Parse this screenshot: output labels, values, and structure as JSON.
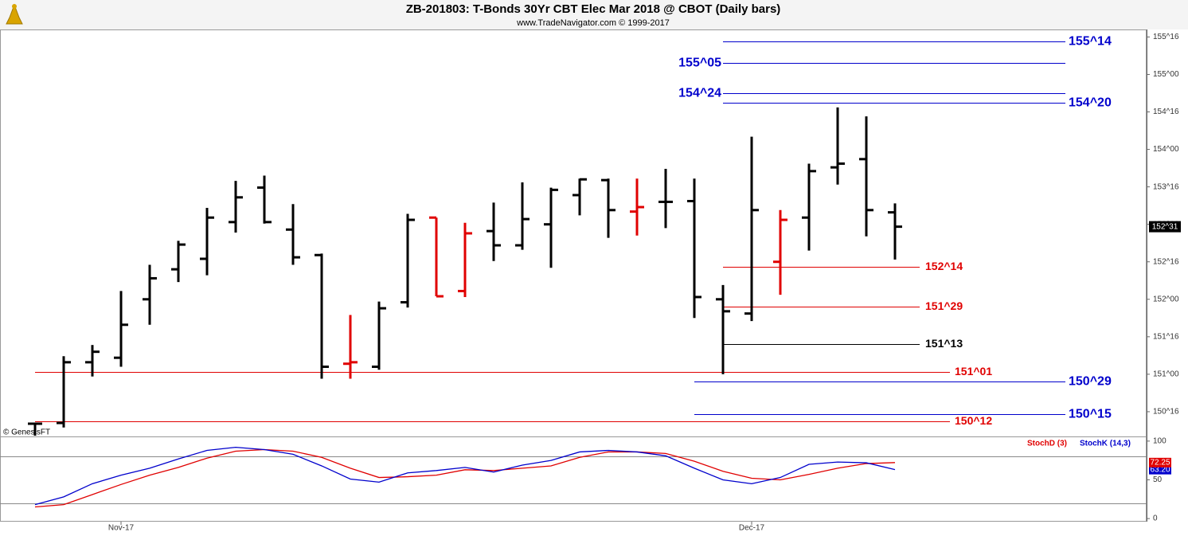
{
  "chart_data": [
    {
      "type": "ohlc",
      "title": "ZB-201803:  T-Bonds 30Yr CBT Elec Mar 2018 @ CBOT  (Daily bars)",
      "subtitle": "www.TradeNavigator.com © 1999-2017",
      "watermark": "© GenesisFT",
      "categories": [
        null,
        null,
        null,
        "Nov-17",
        null,
        null,
        null,
        null,
        null,
        null,
        null,
        null,
        null,
        null,
        null,
        null,
        null,
        null,
        null,
        null,
        null,
        null,
        null,
        null,
        null,
        "Dec-17",
        null,
        null,
        null,
        null,
        null
      ],
      "open": [
        150.34,
        150.35,
        151.16,
        151.22,
        152.0,
        152.4,
        152.54,
        153.03,
        153.49,
        152.93,
        152.59,
        151.14,
        151.1,
        151.96,
        153.09,
        152.11,
        152.91,
        152.72,
        153.0,
        153.39,
        153.59,
        153.17,
        153.3,
        153.31,
        152.0,
        151.81,
        152.5,
        153.09,
        153.76,
        153.87,
        153.16
      ],
      "high": [
        150.34,
        151.24,
        151.39,
        152.11,
        152.46,
        152.78,
        153.22,
        153.58,
        153.65,
        153.27,
        152.61,
        151.79,
        151.97,
        153.14,
        153.09,
        153.02,
        153.29,
        153.56,
        153.49,
        153.61,
        153.61,
        153.61,
        153.74,
        153.61,
        152.19,
        154.17,
        153.19,
        153.81,
        154.56,
        154.44,
        153.28
      ],
      "low": [
        150.18,
        150.29,
        150.97,
        151.1,
        151.66,
        152.23,
        152.32,
        152.89,
        153.01,
        152.46,
        150.94,
        150.94,
        151.06,
        151.89,
        152.04,
        152.03,
        152.51,
        152.66,
        152.42,
        153.12,
        152.82,
        152.85,
        152.95,
        151.75,
        151.0,
        151.71,
        152.06,
        152.65,
        153.53,
        152.84,
        152.53
      ],
      "close": [
        150.34,
        151.16,
        151.3,
        151.66,
        152.28,
        152.73,
        153.09,
        153.36,
        153.03,
        152.56,
        151.1,
        151.16,
        151.88,
        153.06,
        152.04,
        152.88,
        152.72,
        153.07,
        153.46,
        153.6,
        153.19,
        153.23,
        153.3,
        152.03,
        151.84,
        153.19,
        153.06,
        153.71,
        153.81,
        153.19,
        152.96875
      ],
      "colors": [
        "#000000",
        "#000000",
        "#000000",
        "#000000",
        "#000000",
        "#000000",
        "#000000",
        "#000000",
        "#000000",
        "#000000",
        "#000000",
        "#e00000",
        "#000000",
        "#000000",
        "#e00000",
        "#e00000",
        "#000000",
        "#000000",
        "#000000",
        "#000000",
        "#000000",
        "#e00000",
        "#000000",
        "#000000",
        "#000000",
        "#000000",
        "#e00000",
        "#000000",
        "#000000",
        "#000000",
        "#000000"
      ],
      "ylim": [
        150.17,
        155.6
      ],
      "yticks": [
        {
          "value": 150.5,
          "label": "150^16"
        },
        {
          "value": 151,
          "label": "151^00"
        },
        {
          "value": 151.5,
          "label": "151^16"
        },
        {
          "value": 152,
          "label": "152^00"
        },
        {
          "value": 152.5,
          "label": "152^16"
        },
        {
          "value": 153,
          "label": "153^00"
        },
        {
          "value": 153.5,
          "label": "153^16"
        },
        {
          "value": 154,
          "label": "154^00"
        },
        {
          "value": 154.5,
          "label": "154^16"
        },
        {
          "value": 155,
          "label": "155^00"
        },
        {
          "value": 155.5,
          "label": "155^16"
        }
      ],
      "levels": [
        {
          "value": 155.4375,
          "label": "155^14",
          "color": "#0000cc"
        },
        {
          "value": 155.15625,
          "label": "155^05",
          "color": "#0000cc"
        },
        {
          "value": 154.75,
          "label": "154^24",
          "color": "#0000cc"
        },
        {
          "value": 154.625,
          "label": "154^20",
          "color": "#0000cc"
        },
        {
          "value": 152.4375,
          "label": "152^14",
          "color": "#e00000"
        },
        {
          "value": 151.90625,
          "label": "151^29",
          "color": "#e00000"
        },
        {
          "value": 151.40625,
          "label": "151^13",
          "color": "#000000"
        },
        {
          "value": 151.03125,
          "label": "151^01",
          "color": "#e00000"
        },
        {
          "value": 150.90625,
          "label": "150^29",
          "color": "#0000cc"
        },
        {
          "value": 150.46875,
          "label": "150^15",
          "color": "#0000cc"
        },
        {
          "value": 150.375,
          "label": "150^12",
          "color": "#e00000"
        }
      ],
      "last_price": {
        "value": 152.96875,
        "label": "152^31"
      }
    },
    {
      "type": "line",
      "series": [
        {
          "name": "StochD (3)",
          "color": "#e00000",
          "values": [
            15,
            18,
            31,
            44,
            56,
            66,
            78,
            87,
            89,
            87,
            79,
            65,
            53,
            54,
            56,
            63,
            62,
            65,
            68,
            79,
            86,
            86,
            84,
            74,
            61,
            52,
            50,
            57,
            65,
            71,
            72.25
          ],
          "last_label": "72.25"
        },
        {
          "name": "StochK (14,3)",
          "color": "#0000cc",
          "values": [
            18,
            28,
            45,
            56,
            65,
            77,
            88,
            92,
            89,
            83,
            68,
            51,
            47,
            59,
            62,
            66,
            60,
            69,
            75,
            86,
            88,
            86,
            81,
            65,
            50,
            45,
            53,
            70,
            73,
            72,
            63.2
          ],
          "last_label": "63.20"
        }
      ],
      "ylim": [
        -4,
        106
      ],
      "yticks": [
        0,
        50,
        100
      ],
      "levels": [
        20,
        80
      ]
    }
  ]
}
